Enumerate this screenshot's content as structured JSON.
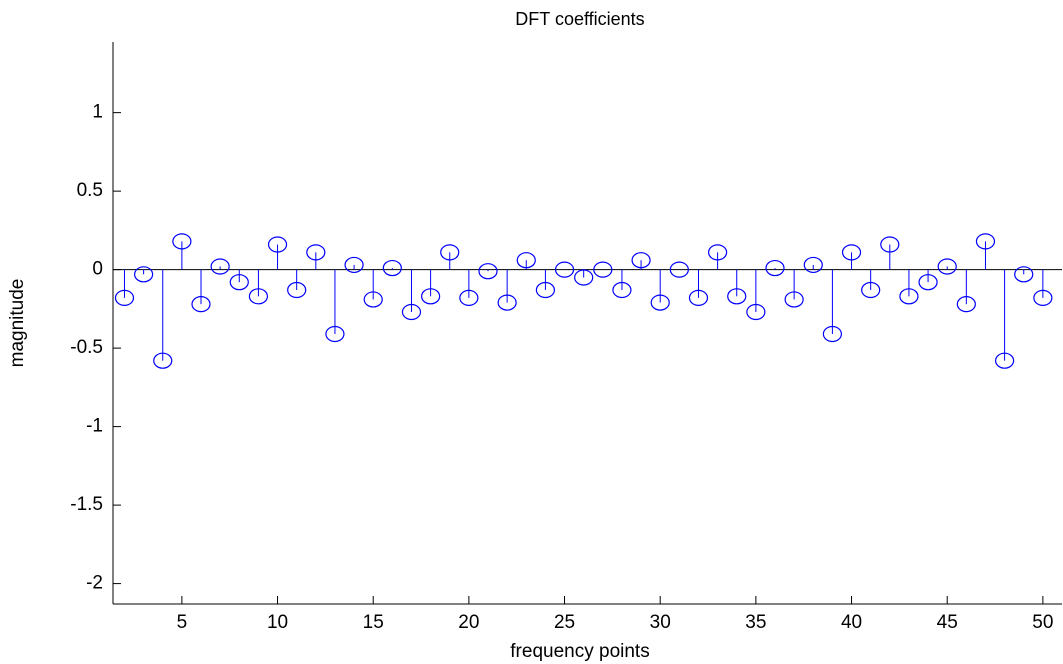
{
  "chart_data": {
    "type": "stem",
    "title": "DFT coefficients",
    "xlabel": "frequency points",
    "ylabel": "magnitude",
    "x": [
      2,
      3,
      4,
      5,
      6,
      7,
      8,
      9,
      10,
      11,
      12,
      13,
      14,
      15,
      16,
      17,
      18,
      19,
      20,
      21,
      22,
      23,
      24,
      25,
      26,
      27,
      28,
      29,
      30,
      31,
      32,
      33,
      34,
      35,
      36,
      37,
      38,
      39,
      40,
      41,
      42,
      43,
      44,
      45,
      46,
      47,
      48,
      49,
      50
    ],
    "series": [
      {
        "color": "#0000ff",
        "values": [
          -0.18,
          -0.03,
          -0.58,
          0.18,
          -0.22,
          0.02,
          -0.08,
          -0.17,
          0.16,
          -0.13,
          0.11,
          -0.41,
          0.03,
          -0.19,
          0.01,
          -0.27,
          -0.17,
          0.11,
          -0.18,
          -0.01,
          -0.21,
          0.06,
          -0.13,
          0,
          -0.05,
          0,
          -0.13,
          0.06,
          -0.21,
          0,
          -0.18,
          0.11,
          -0.17,
          -0.27,
          0.01,
          -0.19,
          0.03,
          -0.41,
          0.11,
          -0.13,
          0.16,
          -0.17,
          -0.08,
          0.02,
          -0.22,
          0.18,
          -0.58,
          -0.03,
          -0.18
        ]
      }
    ],
    "xlim": [
      1.4,
      51
    ],
    "ylim": [
      -2.13,
      1.45
    ],
    "xticks": [
      5,
      10,
      15,
      20,
      25,
      30,
      35,
      40,
      45,
      50
    ],
    "yticks": [
      -2,
      -1.5,
      -1,
      -0.5,
      0,
      0.5,
      1
    ]
  }
}
